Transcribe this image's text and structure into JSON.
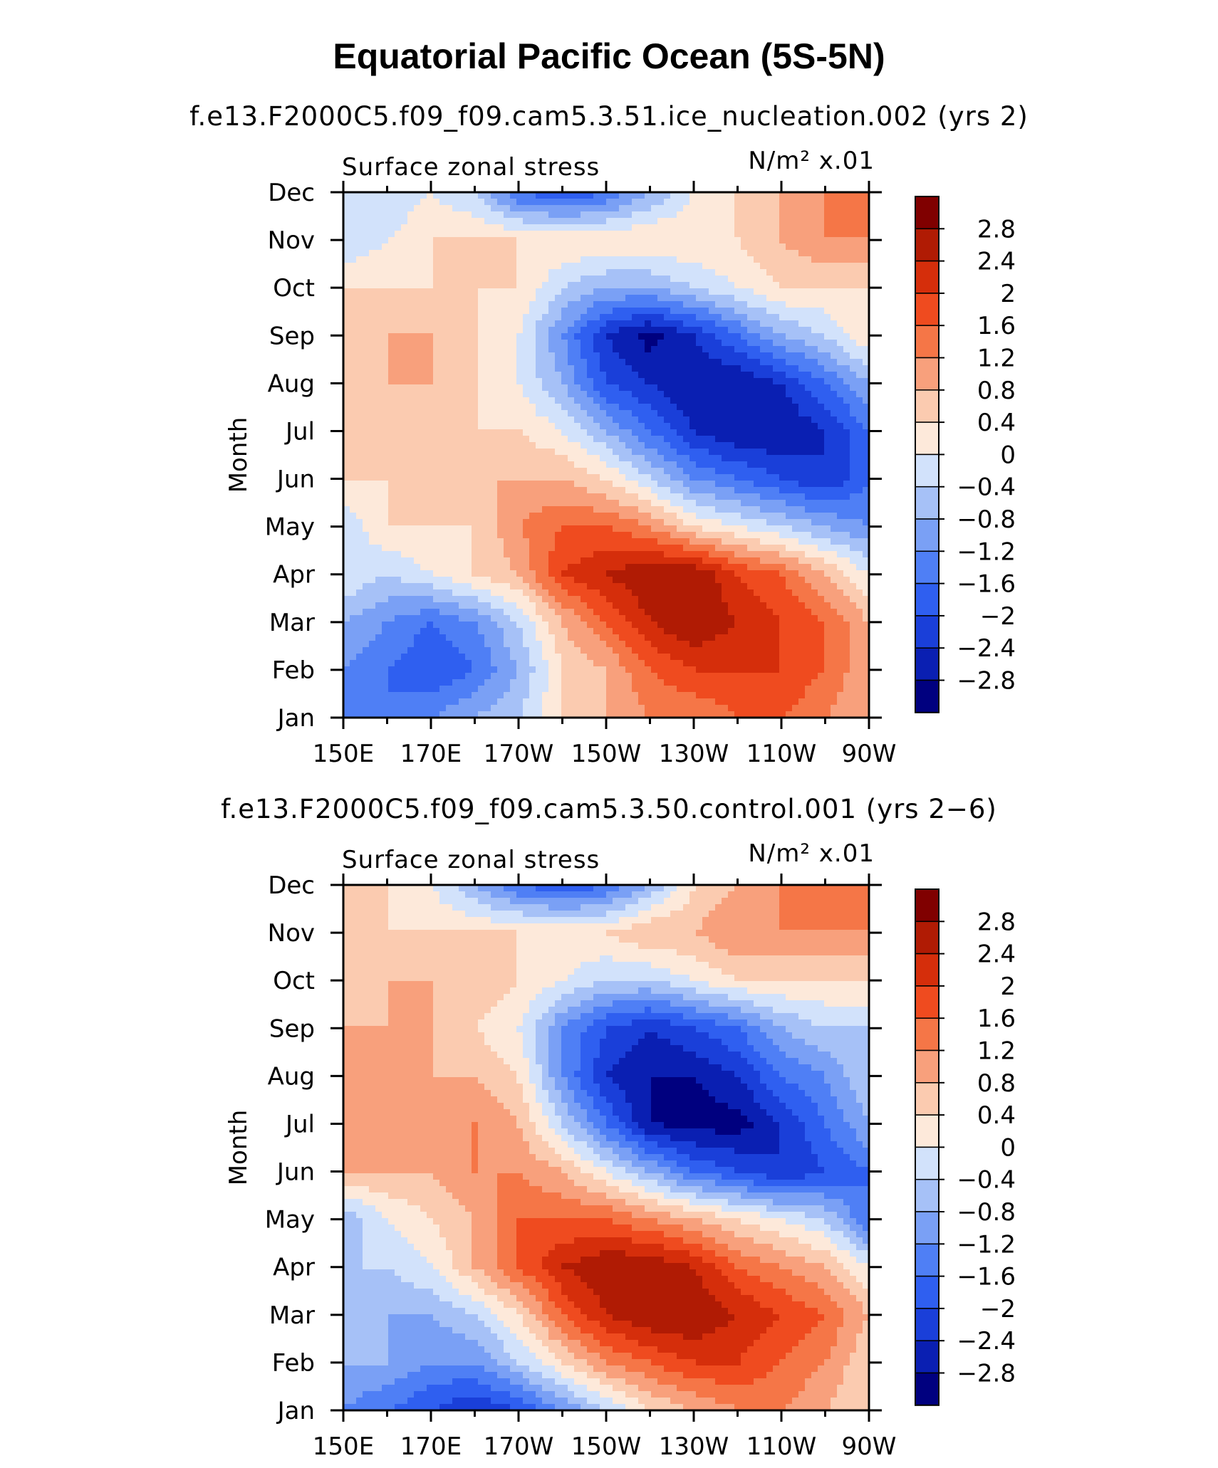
{
  "title": "Equatorial Pacific Ocean (5S-5N)",
  "colors": [
    "#00007f",
    "#0a1fb2",
    "#1a3fd9",
    "#2f5ff0",
    "#4f7ff5",
    "#7aa0f5",
    "#a6c1f7",
    "#d2e2fb",
    "#fde9da",
    "#fbcbb0",
    "#f8a07c",
    "#f57647",
    "#ef4b1f",
    "#d52e0b",
    "#b01b04",
    "#800000"
  ],
  "chart_data": [
    {
      "type": "heatmap",
      "subtitle": "f.e13.F2000C5.f09_f09.cam5.3.51.ice_nucleation.002 (yrs 2)",
      "left_label": "Surface zonal stress",
      "right_label": "N/m² x.01",
      "ylabel": "Month",
      "x_tick_labels": [
        "150E",
        "170E",
        "170W",
        "150W",
        "130W",
        "110W",
        "90W"
      ],
      "y_tick_labels": [
        "Jan",
        "Feb",
        "Mar",
        "Apr",
        "May",
        "Jun",
        "Jul",
        "Aug",
        "Sep",
        "Oct",
        "Nov",
        "Dec"
      ],
      "x_range_deg_east": [
        150,
        270
      ],
      "colorbar_labels": [
        "2.8",
        "2.4",
        "2",
        "1.6",
        "1.2",
        "0.8",
        "0.4",
        "0",
        "−0.4",
        "−0.8",
        "−1.2",
        "−1.6",
        "−2",
        "−2.4",
        "−2.8"
      ],
      "levels": [
        -2.8,
        -2.4,
        -2.0,
        -1.6,
        -1.2,
        -0.8,
        -0.4,
        0,
        0.4,
        0.8,
        1.2,
        1.6,
        2.0,
        2.4,
        2.8
      ],
      "x": [
        150,
        160,
        170,
        180,
        190,
        200,
        210,
        220,
        230,
        240,
        250,
        260,
        270
      ],
      "months": [
        1,
        2,
        3,
        4,
        5,
        6,
        7,
        8,
        9,
        10,
        11,
        12
      ],
      "z": [
        [
          -1.2,
          -1.6,
          -1.2,
          -0.8,
          -0.4,
          0.4,
          0.8,
          1.2,
          1.2,
          1.6,
          1.6,
          1.2,
          0.8
        ],
        [
          -1.2,
          -1.6,
          -2.0,
          -1.6,
          -0.8,
          0.4,
          0.8,
          1.6,
          2.0,
          2.0,
          2.0,
          1.6,
          0.8
        ],
        [
          -0.8,
          -1.2,
          -1.6,
          -1.2,
          -0.4,
          0.8,
          1.6,
          2.4,
          2.8,
          2.4,
          2.0,
          1.6,
          0.8
        ],
        [
          0.0,
          -0.4,
          0.0,
          0.4,
          0.8,
          2.0,
          2.4,
          2.8,
          2.8,
          2.0,
          1.6,
          0.8,
          0.0
        ],
        [
          -0.4,
          0.4,
          0.4,
          0.4,
          1.2,
          1.6,
          1.6,
          1.2,
          0.4,
          0.0,
          -0.4,
          -0.8,
          -1.2
        ],
        [
          0.4,
          0.4,
          0.4,
          0.8,
          0.8,
          0.8,
          0.4,
          -0.4,
          -1.2,
          -1.6,
          -2.0,
          -2.4,
          -1.6
        ],
        [
          0.4,
          0.4,
          0.4,
          0.4,
          0.4,
          0.0,
          -0.8,
          -1.6,
          -2.4,
          -2.8,
          -2.8,
          -2.4,
          -1.6
        ],
        [
          0.4,
          0.8,
          0.8,
          0.4,
          0.0,
          -0.8,
          -2.0,
          -2.4,
          -2.8,
          -2.8,
          -2.4,
          -1.6,
          -0.8
        ],
        [
          0.4,
          0.8,
          0.8,
          0.4,
          0.0,
          -1.2,
          -2.4,
          -3.0,
          -2.4,
          -1.6,
          -0.8,
          -0.4,
          0.4
        ],
        [
          0.4,
          0.4,
          0.4,
          0.4,
          0.4,
          -0.4,
          -0.8,
          -0.8,
          -0.4,
          0.0,
          0.4,
          0.4,
          0.4
        ],
        [
          -0.4,
          0.0,
          0.4,
          0.4,
          0.4,
          0.4,
          0.4,
          0.4,
          0.4,
          0.4,
          0.8,
          1.2,
          1.2
        ],
        [
          -0.4,
          -0.4,
          0.0,
          -0.4,
          -1.6,
          -2.0,
          -1.6,
          -0.8,
          0.0,
          0.4,
          0.8,
          1.2,
          1.2
        ]
      ]
    },
    {
      "type": "heatmap",
      "subtitle": "f.e13.F2000C5.f09_f09.cam5.3.50.control.001 (yrs 2−6)",
      "left_label": "Surface zonal stress",
      "right_label": "N/m² x.01",
      "ylabel": "Month",
      "x_tick_labels": [
        "150E",
        "170E",
        "170W",
        "150W",
        "130W",
        "110W",
        "90W"
      ],
      "y_tick_labels": [
        "Jan",
        "Feb",
        "Mar",
        "Apr",
        "May",
        "Jun",
        "Jul",
        "Aug",
        "Sep",
        "Oct",
        "Nov",
        "Dec"
      ],
      "x_range_deg_east": [
        150,
        270
      ],
      "colorbar_labels": [
        "2.8",
        "2.4",
        "2",
        "1.6",
        "1.2",
        "0.8",
        "0.4",
        "0",
        "−0.4",
        "−0.8",
        "−1.2",
        "−1.6",
        "−2",
        "−2.4",
        "−2.8"
      ],
      "levels": [
        -2.8,
        -2.4,
        -2.0,
        -1.6,
        -1.2,
        -0.8,
        -0.4,
        0,
        0.4,
        0.8,
        1.2,
        1.6,
        2.0,
        2.4,
        2.8
      ],
      "x": [
        150,
        160,
        170,
        180,
        190,
        200,
        210,
        220,
        230,
        240,
        250,
        260,
        270
      ],
      "months": [
        1,
        2,
        3,
        4,
        5,
        6,
        7,
        8,
        9,
        10,
        11,
        12
      ],
      "z": [
        [
          -1.2,
          -1.6,
          -2.0,
          -2.4,
          -2.0,
          -1.2,
          -0.4,
          0.4,
          0.8,
          1.2,
          1.2,
          0.8,
          0.4
        ],
        [
          -0.8,
          -0.8,
          -1.2,
          -1.2,
          -0.4,
          0.4,
          1.2,
          1.6,
          2.0,
          2.0,
          1.6,
          1.2,
          0.4
        ],
        [
          -0.4,
          -0.8,
          -0.8,
          -0.4,
          0.4,
          1.6,
          2.4,
          2.8,
          2.8,
          2.4,
          2.0,
          1.6,
          0.8
        ],
        [
          -0.4,
          -0.4,
          0.0,
          0.8,
          1.6,
          2.4,
          2.8,
          2.8,
          2.4,
          1.6,
          1.2,
          0.8,
          0.0
        ],
        [
          -0.8,
          0.0,
          0.4,
          0.8,
          1.6,
          1.6,
          1.6,
          1.2,
          0.8,
          0.4,
          0.0,
          -0.4,
          -1.6
        ],
        [
          0.8,
          0.8,
          0.8,
          1.2,
          1.2,
          0.8,
          0.0,
          -0.8,
          -1.6,
          -2.0,
          -2.4,
          -2.0,
          -1.6
        ],
        [
          0.8,
          1.2,
          1.2,
          1.2,
          0.8,
          -0.4,
          -1.6,
          -2.8,
          -3.0,
          -3.0,
          -2.4,
          -1.6,
          -0.8
        ],
        [
          0.8,
          0.8,
          0.8,
          0.8,
          0.4,
          -1.2,
          -2.4,
          -2.8,
          -2.8,
          -2.4,
          -1.6,
          -1.2,
          -0.4
        ],
        [
          0.8,
          0.8,
          0.8,
          0.4,
          0.0,
          -1.2,
          -2.0,
          -2.4,
          -2.0,
          -1.6,
          -0.8,
          -0.4,
          -0.4
        ],
        [
          0.4,
          0.8,
          0.8,
          0.8,
          0.4,
          0.0,
          -0.4,
          -0.4,
          0.0,
          0.4,
          0.4,
          0.4,
          0.4
        ],
        [
          0.4,
          0.4,
          0.4,
          0.4,
          0.4,
          0.4,
          0.4,
          0.8,
          0.8,
          1.2,
          1.2,
          1.2,
          1.2
        ],
        [
          0.4,
          0.4,
          0.0,
          -0.8,
          -1.6,
          -2.0,
          -1.6,
          -0.8,
          0.4,
          0.8,
          1.2,
          1.2,
          1.2
        ]
      ]
    }
  ]
}
